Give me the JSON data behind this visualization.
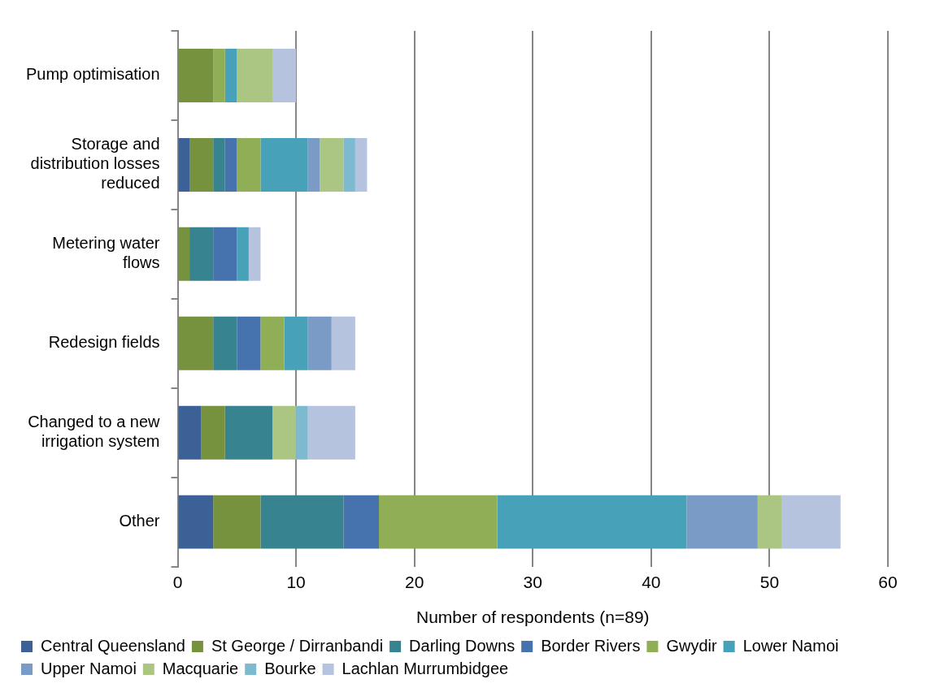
{
  "chart_data": {
    "type": "bar",
    "orientation": "horizontal",
    "stacked": true,
    "xlabel": "Number of respondents (n=89)",
    "categories": [
      "Pump optimisation",
      "Storage and distribution losses reduced",
      "Metering water flows",
      "Redesign fields",
      "Changed to a new irrigation system",
      "Other"
    ],
    "series": [
      {
        "name": "Central Queensland",
        "color": "#3b6196",
        "values": [
          0,
          1,
          0,
          0,
          2,
          3
        ]
      },
      {
        "name": "St George / Dirranbandi",
        "color": "#77923f",
        "values": [
          3,
          2,
          1,
          3,
          2,
          4
        ]
      },
      {
        "name": "Darling Downs",
        "color": "#37838f",
        "values": [
          0,
          1,
          2,
          2,
          4,
          7
        ]
      },
      {
        "name": "Border Rivers",
        "color": "#4673ad",
        "values": [
          0,
          1,
          2,
          2,
          0,
          3
        ]
      },
      {
        "name": "Gwydir",
        "color": "#8fae55",
        "values": [
          1,
          2,
          0,
          2,
          0,
          10
        ]
      },
      {
        "name": "Lower Namoi",
        "color": "#47a1b9",
        "values": [
          1,
          4,
          1,
          2,
          0,
          16
        ]
      },
      {
        "name": "Upper Namoi",
        "color": "#7b9bc7",
        "values": [
          0,
          1,
          0,
          2,
          0,
          6
        ]
      },
      {
        "name": "Macquarie",
        "color": "#abc583",
        "values": [
          3,
          2,
          0,
          0,
          2,
          2
        ]
      },
      {
        "name": "Bourke",
        "color": "#7db9cf",
        "values": [
          0,
          1,
          0,
          0,
          1,
          0
        ]
      },
      {
        "name": "Lachlan Murrumbidgee",
        "color": "#b5c3de",
        "values": [
          2,
          1,
          1,
          2,
          4,
          5
        ]
      }
    ],
    "xlim": [
      0,
      60
    ],
    "xticks": [
      0,
      10,
      20,
      30,
      40,
      50,
      60
    ],
    "grid": "x",
    "legend": "bottom"
  }
}
